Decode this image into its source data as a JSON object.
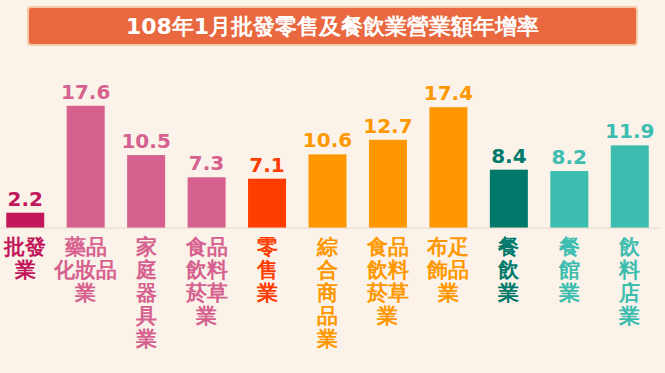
{
  "chart_data": {
    "type": "bar",
    "title": "108年1月批發零售及餐飲業營業額年增率",
    "categories": [
      "批發\n業",
      "藥品\n化妝品\n業",
      "家\n庭\n器\n具\n業",
      "食品\n飲料\n菸草\n業",
      "零\n售\n業",
      "綜\n合\n商\n品\n業",
      "食品\n飲料\n菸草\n業",
      "布疋\n飾品\n業",
      "餐\n飲\n業",
      "餐\n館\n業",
      "飲\n料\n店\n業"
    ],
    "values": [
      2.2,
      17.6,
      10.5,
      7.3,
      7.1,
      10.6,
      12.7,
      17.4,
      8.4,
      8.2,
      11.9
    ],
    "colors": [
      "#c2185b",
      "#d6618f",
      "#d6618f",
      "#d6618f",
      "#ff3d00",
      "#ff9800",
      "#ff9800",
      "#ff9800",
      "#00796b",
      "#3dbdb0",
      "#3dbdb0"
    ],
    "ylim": [
      0,
      18
    ],
    "data_labels": true,
    "tick_labels": "x",
    "grid": false
  }
}
